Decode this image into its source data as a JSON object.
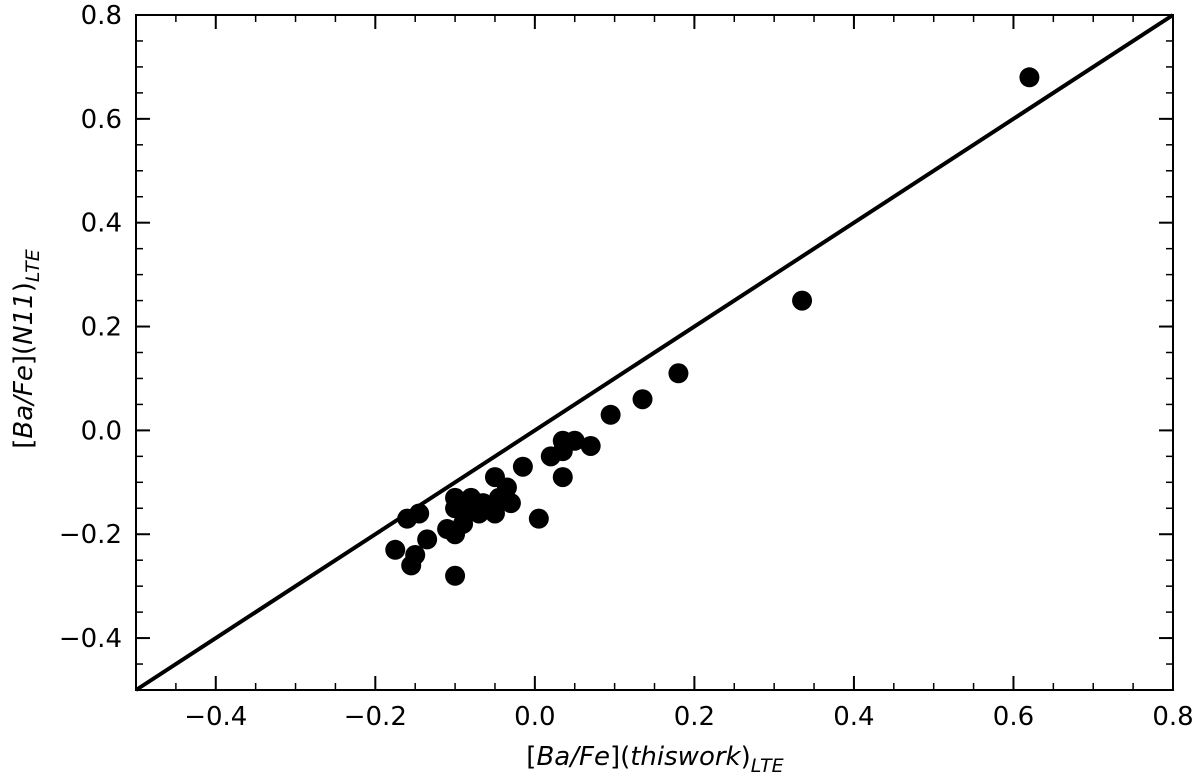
{
  "chart_data": {
    "type": "scatter",
    "xlabel": {
      "pre": "[",
      "a": "Ba/Fe",
      "mid": "](",
      "b": "thiswork",
      "post": ")",
      "sub": "LTE"
    },
    "ylabel": {
      "pre": "[",
      "a": "Ba/Fe",
      "mid": "](",
      "b": "N11",
      "post": ")",
      "sub": "LTE"
    },
    "xlim": [
      -0.5,
      0.8
    ],
    "ylim": [
      -0.5,
      0.8
    ],
    "xticks": [
      -0.4,
      -0.2,
      0.0,
      0.2,
      0.4,
      0.6,
      0.8
    ],
    "yticks": [
      -0.4,
      -0.2,
      0.0,
      0.2,
      0.4,
      0.6,
      0.8
    ],
    "minor_step": 0.05,
    "grid": false,
    "reference_line": {
      "x": [
        -0.5,
        0.8
      ],
      "y": [
        -0.5,
        0.8
      ]
    },
    "marker_color": "#000000",
    "points": [
      {
        "x": 0.62,
        "y": 0.68
      },
      {
        "x": 0.335,
        "y": 0.25
      },
      {
        "x": 0.18,
        "y": 0.11
      },
      {
        "x": 0.135,
        "y": 0.06
      },
      {
        "x": 0.095,
        "y": 0.03
      },
      {
        "x": 0.07,
        "y": -0.03
      },
      {
        "x": 0.05,
        "y": -0.02
      },
      {
        "x": 0.035,
        "y": -0.02
      },
      {
        "x": 0.035,
        "y": -0.04
      },
      {
        "x": 0.035,
        "y": -0.09
      },
      {
        "x": 0.02,
        "y": -0.05
      },
      {
        "x": 0.005,
        "y": -0.17
      },
      {
        "x": -0.015,
        "y": -0.07
      },
      {
        "x": -0.035,
        "y": -0.11
      },
      {
        "x": -0.03,
        "y": -0.14
      },
      {
        "x": -0.05,
        "y": -0.09
      },
      {
        "x": -0.045,
        "y": -0.13
      },
      {
        "x": -0.05,
        "y": -0.16
      },
      {
        "x": -0.06,
        "y": -0.15
      },
      {
        "x": -0.065,
        "y": -0.14
      },
      {
        "x": -0.07,
        "y": -0.16
      },
      {
        "x": -0.08,
        "y": -0.13
      },
      {
        "x": -0.085,
        "y": -0.15
      },
      {
        "x": -0.09,
        "y": -0.18
      },
      {
        "x": -0.1,
        "y": -0.13
      },
      {
        "x": -0.1,
        "y": -0.15
      },
      {
        "x": -0.1,
        "y": -0.2
      },
      {
        "x": -0.1,
        "y": -0.28
      },
      {
        "x": -0.11,
        "y": -0.19
      },
      {
        "x": -0.135,
        "y": -0.21
      },
      {
        "x": -0.145,
        "y": -0.16
      },
      {
        "x": -0.15,
        "y": -0.24
      },
      {
        "x": -0.155,
        "y": -0.26
      },
      {
        "x": -0.16,
        "y": -0.17
      },
      {
        "x": -0.175,
        "y": -0.23
      }
    ]
  }
}
